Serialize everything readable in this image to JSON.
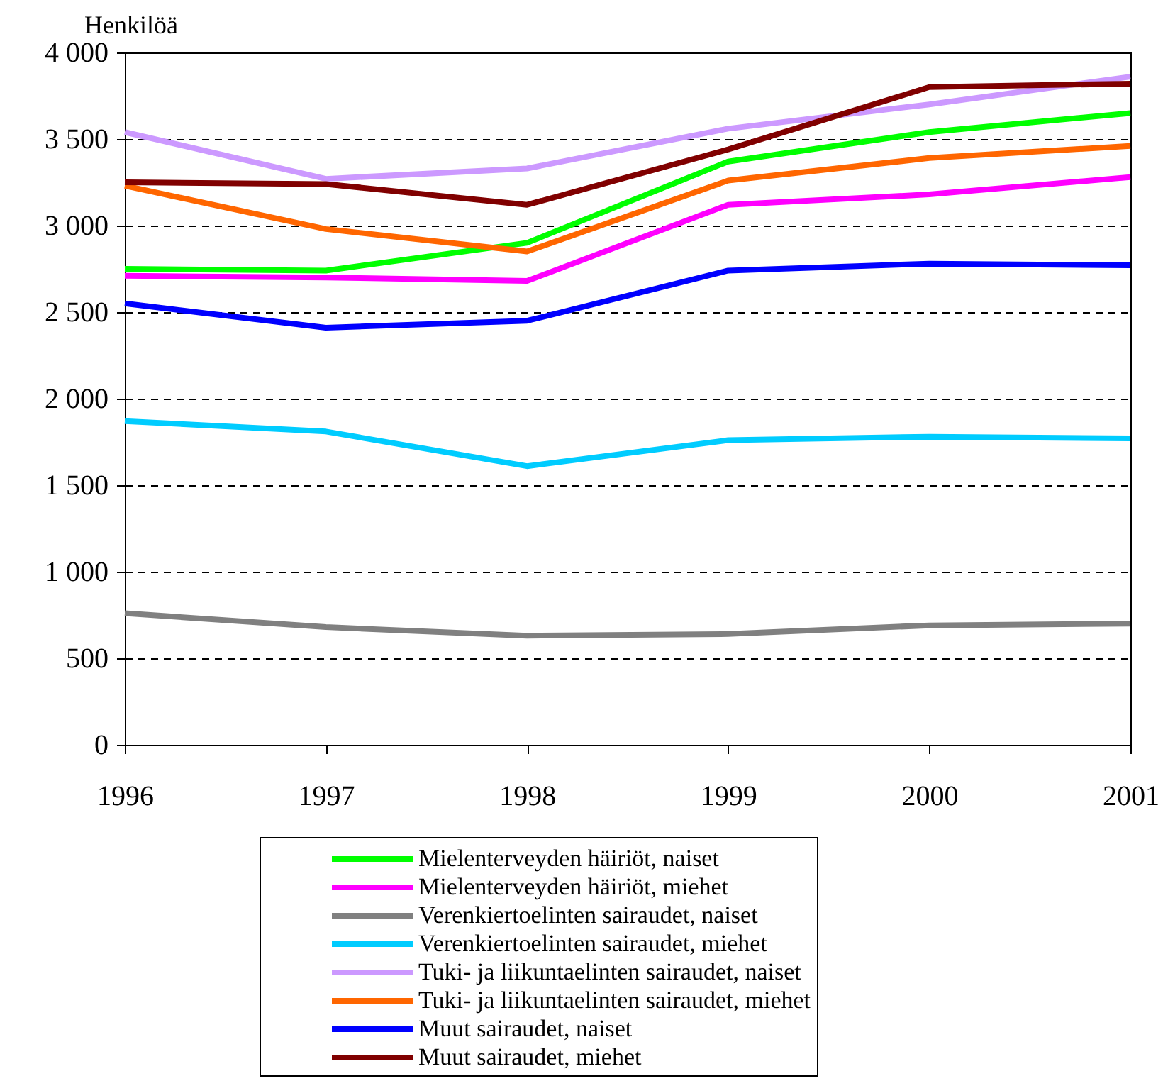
{
  "chart_data": {
    "type": "line",
    "ylabel": "Henkilöä",
    "x": [
      1996,
      1997,
      1998,
      1999,
      2000,
      2001
    ],
    "xlim": [
      1996,
      2001
    ],
    "xticks": [
      1996,
      1997,
      1998,
      1999,
      2000,
      2001
    ],
    "ylim": [
      0,
      4000
    ],
    "yticks": [
      0,
      500,
      {
        "value": 1000,
        "label": "1 000"
      },
      {
        "value": 1500,
        "label": "1 500"
      },
      {
        "value": 2000,
        "label": "2 000"
      },
      {
        "value": 2500,
        "label": "2 500"
      },
      {
        "value": 3000,
        "label": "3 000"
      },
      {
        "value": 3500,
        "label": "3 500"
      },
      {
        "value": 4000,
        "label": "4 000"
      }
    ],
    "grid": "y",
    "legend": "bottom",
    "line_style": "solid",
    "series": [
      {
        "name": "Mielenterveyden häiriöt, naiset",
        "color": "#00ff00",
        "values": [
          2750,
          2740,
          2900,
          3370,
          3540,
          3650
        ]
      },
      {
        "name": "Mielenterveyden häiriöt, miehet",
        "color": "#ff00ff",
        "values": [
          2710,
          2700,
          2680,
          3120,
          3180,
          3280
        ]
      },
      {
        "name": "Verenkiertoelinten sairaudet, naiset",
        "color": "#808080",
        "values": [
          760,
          680,
          630,
          640,
          690,
          700
        ]
      },
      {
        "name": "Verenkiertoelinten sairaudet, miehet",
        "color": "#00ccff",
        "values": [
          1870,
          1810,
          1610,
          1760,
          1780,
          1770
        ]
      },
      {
        "name": "Tuki- ja liikuntaelinten sairaudet, naiset",
        "color": "#cc99ff",
        "values": [
          3540,
          3270,
          3330,
          3560,
          3700,
          3860
        ]
      },
      {
        "name": "Tuki- ja liikuntaelinten sairaudet, miehet",
        "color": "#ff6600",
        "values": [
          3230,
          2980,
          2850,
          3260,
          3390,
          3460
        ]
      },
      {
        "name": "Muut sairaudet, naiset",
        "color": "#0000ff",
        "values": [
          2550,
          2410,
          2450,
          2740,
          2780,
          2770
        ]
      },
      {
        "name": "Muut sairaudet, miehet",
        "color": "#800000",
        "values": [
          3250,
          3240,
          3120,
          3440,
          3800,
          3820
        ]
      }
    ]
  }
}
